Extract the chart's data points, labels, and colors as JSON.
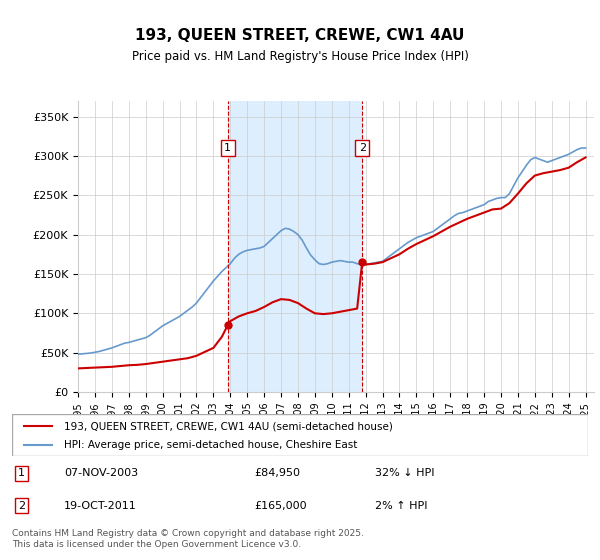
{
  "title": "193, QUEEN STREET, CREWE, CW1 4AU",
  "subtitle": "Price paid vs. HM Land Registry's House Price Index (HPI)",
  "ylabel": "",
  "yticks": [
    0,
    50000,
    100000,
    150000,
    200000,
    250000,
    300000,
    350000
  ],
  "ytick_labels": [
    "£0",
    "£50K",
    "£100K",
    "£150K",
    "£200K",
    "£250K",
    "£300K",
    "£350K"
  ],
  "xlim_start": 1995.0,
  "xlim_end": 2025.5,
  "ylim": [
    0,
    370000
  ],
  "purchase1_date": 2003.85,
  "purchase1_price": 84950,
  "purchase1_label": "1",
  "purchase2_date": 2011.8,
  "purchase2_price": 165000,
  "purchase2_label": "2",
  "line1_label": "193, QUEEN STREET, CREWE, CW1 4AU (semi-detached house)",
  "line2_label": "HPI: Average price, semi-detached house, Cheshire East",
  "line1_color": "#cc0000",
  "line2_color": "#6699cc",
  "shade_color": "#ddeeff",
  "annotation1": "1     07-NOV-2003          £84,950          32% ↓ HPI",
  "annotation2": "2     19-OCT-2011          £165,000         2% ↑ HPI",
  "footer": "Contains HM Land Registry data © Crown copyright and database right 2025.\nThis data is licensed under the Open Government Licence v3.0.",
  "hpi_years": [
    1995.0,
    1995.25,
    1995.5,
    1995.75,
    1996.0,
    1996.25,
    1996.5,
    1996.75,
    1997.0,
    1997.25,
    1997.5,
    1997.75,
    1998.0,
    1998.25,
    1998.5,
    1998.75,
    1999.0,
    1999.25,
    1999.5,
    1999.75,
    2000.0,
    2000.25,
    2000.5,
    2000.75,
    2001.0,
    2001.25,
    2001.5,
    2001.75,
    2002.0,
    2002.25,
    2002.5,
    2002.75,
    2003.0,
    2003.25,
    2003.5,
    2003.75,
    2004.0,
    2004.25,
    2004.5,
    2004.75,
    2005.0,
    2005.25,
    2005.5,
    2005.75,
    2006.0,
    2006.25,
    2006.5,
    2006.75,
    2007.0,
    2007.25,
    2007.5,
    2007.75,
    2008.0,
    2008.25,
    2008.5,
    2008.75,
    2009.0,
    2009.25,
    2009.5,
    2009.75,
    2010.0,
    2010.25,
    2010.5,
    2010.75,
    2011.0,
    2011.25,
    2011.5,
    2011.75,
    2012.0,
    2012.25,
    2012.5,
    2012.75,
    2013.0,
    2013.25,
    2013.5,
    2013.75,
    2014.0,
    2014.25,
    2014.5,
    2014.75,
    2015.0,
    2015.25,
    2015.5,
    2015.75,
    2016.0,
    2016.25,
    2016.5,
    2016.75,
    2017.0,
    2017.25,
    2017.5,
    2017.75,
    2018.0,
    2018.25,
    2018.5,
    2018.75,
    2019.0,
    2019.25,
    2019.5,
    2019.75,
    2020.0,
    2020.25,
    2020.5,
    2020.75,
    2021.0,
    2021.25,
    2021.5,
    2021.75,
    2022.0,
    2022.25,
    2022.5,
    2022.75,
    2023.0,
    2023.25,
    2023.5,
    2023.75,
    2024.0,
    2024.25,
    2024.5,
    2024.75,
    2025.0
  ],
  "hpi_values": [
    48000,
    48500,
    49000,
    49500,
    50500,
    51500,
    53000,
    54500,
    56000,
    58000,
    60000,
    62000,
    63000,
    64500,
    66000,
    67500,
    69000,
    72000,
    76000,
    80000,
    84000,
    87000,
    90000,
    93000,
    96000,
    100000,
    104000,
    108000,
    113000,
    120000,
    127000,
    134000,
    141000,
    147000,
    153000,
    158000,
    163000,
    170000,
    175000,
    178000,
    180000,
    181000,
    182000,
    183000,
    185000,
    190000,
    195000,
    200000,
    205000,
    208000,
    207000,
    204000,
    200000,
    193000,
    183000,
    174000,
    168000,
    163000,
    162000,
    163000,
    165000,
    166000,
    167000,
    166000,
    165000,
    165000,
    163000,
    162000,
    162000,
    163000,
    164000,
    165000,
    166000,
    170000,
    174000,
    178000,
    182000,
    186000,
    190000,
    193000,
    196000,
    198000,
    200000,
    202000,
    204000,
    208000,
    212000,
    216000,
    220000,
    224000,
    227000,
    228000,
    230000,
    232000,
    234000,
    236000,
    238000,
    242000,
    244000,
    246000,
    247000,
    247000,
    252000,
    262000,
    272000,
    280000,
    288000,
    295000,
    298000,
    296000,
    294000,
    292000,
    294000,
    296000,
    298000,
    300000,
    302000,
    305000,
    308000,
    310000,
    310000
  ],
  "prop_years": [
    1995.0,
    1995.5,
    1996.0,
    1996.5,
    1997.0,
    1997.5,
    1998.0,
    1998.5,
    1999.0,
    1999.5,
    2000.0,
    2000.5,
    2001.0,
    2001.5,
    2002.0,
    2002.5,
    2003.0,
    2003.5,
    2003.85,
    2004.0,
    2004.5,
    2005.0,
    2005.5,
    2006.0,
    2006.5,
    2007.0,
    2007.5,
    2008.0,
    2008.5,
    2009.0,
    2009.5,
    2010.0,
    2010.5,
    2011.0,
    2011.5,
    2011.8,
    2012.0,
    2012.5,
    2013.0,
    2013.5,
    2014.0,
    2014.5,
    2015.0,
    2015.5,
    2016.0,
    2016.5,
    2017.0,
    2017.5,
    2018.0,
    2018.5,
    2019.0,
    2019.5,
    2020.0,
    2020.5,
    2021.0,
    2021.5,
    2022.0,
    2022.5,
    2023.0,
    2023.5,
    2024.0,
    2024.5,
    2025.0
  ],
  "prop_values": [
    30000,
    30500,
    31000,
    31500,
    32000,
    33000,
    34000,
    34500,
    35500,
    37000,
    38500,
    40000,
    41500,
    43000,
    46000,
    51000,
    56000,
    70000,
    84950,
    90000,
    96000,
    100000,
    103000,
    108000,
    114000,
    118000,
    117000,
    113000,
    106000,
    100000,
    99000,
    100000,
    102000,
    104000,
    106000,
    165000,
    162000,
    163000,
    165000,
    170000,
    175000,
    182000,
    188000,
    193000,
    198000,
    204000,
    210000,
    215000,
    220000,
    224000,
    228000,
    232000,
    233000,
    240000,
    252000,
    265000,
    275000,
    278000,
    280000,
    282000,
    285000,
    292000,
    298000
  ]
}
